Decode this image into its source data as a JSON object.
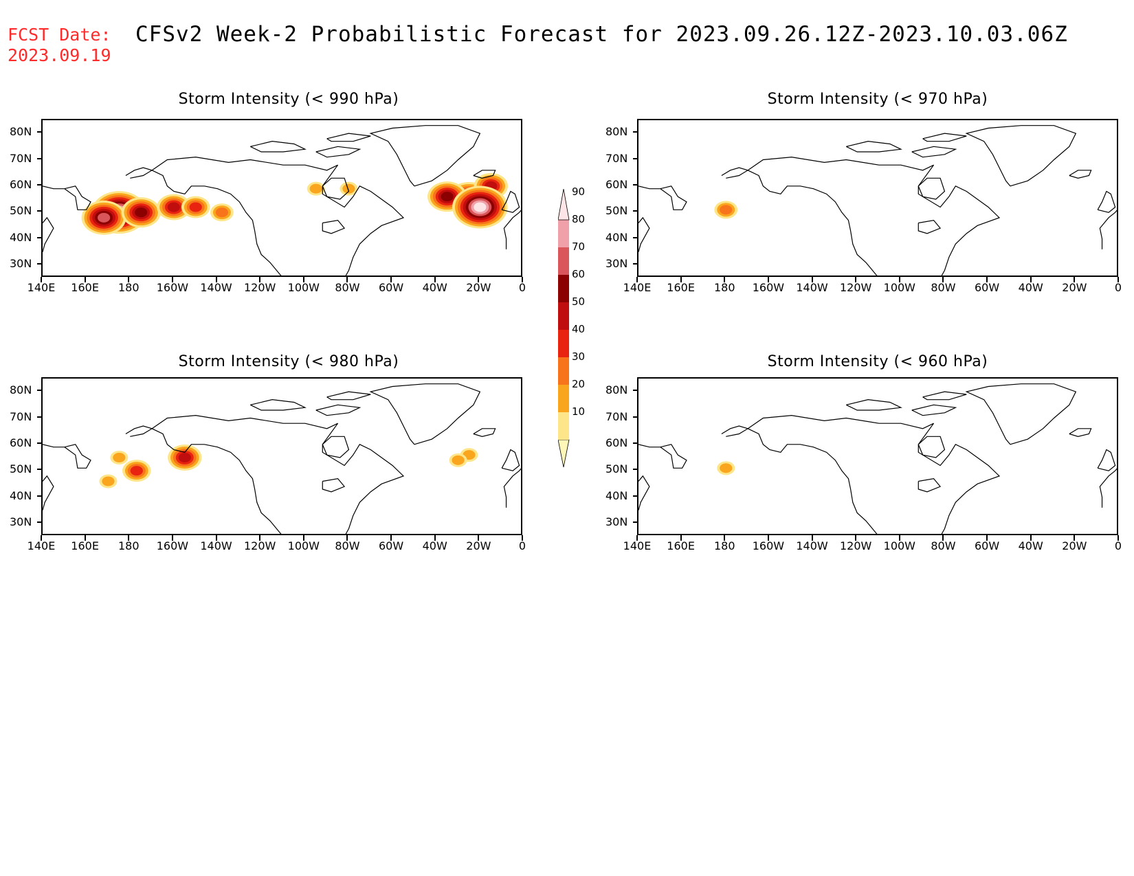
{
  "header": {
    "fcst_label": "FCST Date:",
    "fcst_date": "2023.09.19",
    "title": "CFSv2 Week-2 Probabilistic Forecast for 2023.09.26.12Z-2023.10.03.06Z"
  },
  "panels": [
    {
      "id": "p990",
      "title": "Storm Intensity (< 990 hPa)"
    },
    {
      "id": "p970",
      "title": "Storm Intensity (< 970 hPa)"
    },
    {
      "id": "p980",
      "title": "Storm Intensity (< 980 hPa)"
    },
    {
      "id": "p960",
      "title": "Storm Intensity (< 960 hPa)"
    }
  ],
  "axes": {
    "lat_ticks": [
      "80N",
      "70N",
      "60N",
      "50N",
      "40N",
      "30N"
    ],
    "lat_values": [
      80,
      70,
      60,
      50,
      40,
      30
    ],
    "lon_ticks": [
      "140E",
      "160E",
      "180",
      "160W",
      "140W",
      "120W",
      "100W",
      "80W",
      "60W",
      "40W",
      "20W",
      "0"
    ],
    "lon_range_deg_east": [
      140,
      360
    ],
    "lat_range": [
      25,
      85
    ]
  },
  "colorbar": {
    "levels": [
      "10",
      "20",
      "30",
      "40",
      "50",
      "60",
      "70",
      "80",
      "90"
    ],
    "colors": [
      "#fff7b8",
      "#fde58a",
      "#f9a51d",
      "#f7741a",
      "#e8230f",
      "#c00d0d",
      "#8b0000",
      "#d9575a",
      "#f0a0a8",
      "#fde4e6"
    ]
  },
  "probability_blobs": {
    "p990": [
      {
        "lon": 175,
        "lat": 50,
        "prob": 90
      },
      {
        "lon": 168,
        "lat": 48,
        "prob": 70
      },
      {
        "lon": 185,
        "lat": 50,
        "prob": 60
      },
      {
        "lon": 200,
        "lat": 52,
        "prob": 50
      },
      {
        "lon": 210,
        "lat": 52,
        "prob": 40
      },
      {
        "lon": 222,
        "lat": 50,
        "prob": 30
      },
      {
        "lon": 265,
        "lat": 59,
        "prob": 20
      },
      {
        "lon": 280,
        "lat": 59,
        "prob": 20
      },
      {
        "lon": 335,
        "lat": 55,
        "prob": 70
      },
      {
        "lon": 325,
        "lat": 56,
        "prob": 60
      },
      {
        "lon": 345,
        "lat": 60,
        "prob": 50
      },
      {
        "lon": 340,
        "lat": 52,
        "prob": 90
      }
    ],
    "p970": [
      {
        "lon": 180,
        "lat": 51,
        "prob": 30
      }
    ],
    "p980": [
      {
        "lon": 175,
        "lat": 55,
        "prob": 20
      },
      {
        "lon": 183,
        "lat": 50,
        "prob": 40
      },
      {
        "lon": 170,
        "lat": 46,
        "prob": 20
      },
      {
        "lon": 205,
        "lat": 55,
        "prob": 50
      },
      {
        "lon": 335,
        "lat": 56,
        "prob": 20
      },
      {
        "lon": 330,
        "lat": 54,
        "prob": 20
      }
    ],
    "p960": [
      {
        "lon": 180,
        "lat": 51,
        "prob": 20
      }
    ]
  }
}
